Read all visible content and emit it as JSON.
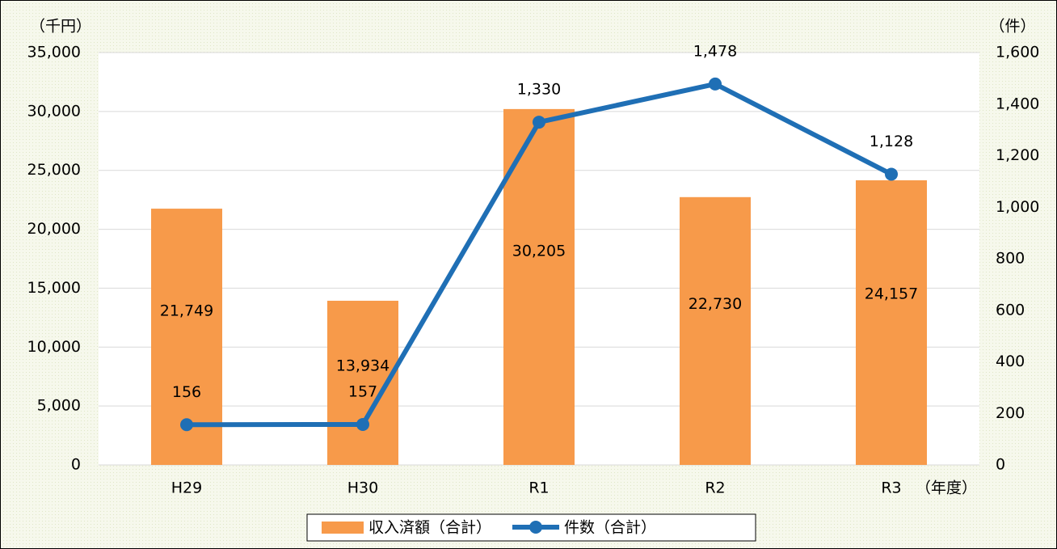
{
  "chart_data": {
    "type": "bar_line",
    "y_unit_label": "（千円）",
    "y2_unit_label": "（件）",
    "x_unit_label": "（年度）",
    "categories": [
      "H29",
      "H30",
      "R1",
      "R2",
      "R3"
    ],
    "series": [
      {
        "name": "収入済額（合計）",
        "type": "bar",
        "color": "#f79a4a",
        "values": [
          21749,
          13934,
          30205,
          22730,
          24157
        ],
        "value_labels": [
          "21,749",
          "13,934",
          "30,205",
          "22,730",
          "24,157"
        ]
      },
      {
        "name": "件数（合計）",
        "type": "line",
        "axis": "y2",
        "color": "#1f6fb5",
        "values": [
          156,
          157,
          1330,
          1478,
          1128
        ],
        "value_labels": [
          "156",
          "157",
          "1,330",
          "1,478",
          "1,128"
        ]
      }
    ],
    "ylim": [
      0,
      35000
    ],
    "yticks": [
      0,
      {
        "value": 5000,
        "label": "5,000"
      },
      {
        "value": 10000,
        "label": "10,000"
      },
      {
        "value": 15000,
        "label": "15,000"
      },
      {
        "value": 20000,
        "label": "20,000"
      },
      {
        "value": 25000,
        "label": "25,000"
      },
      {
        "value": 30000,
        "label": "30,000"
      },
      {
        "value": 35000,
        "label": "35,000"
      }
    ],
    "y2lim": [
      0,
      1600
    ],
    "y2ticks": [
      0,
      200,
      400,
      600,
      800,
      {
        "value": 1000,
        "label": "1,000"
      },
      {
        "value": 1200,
        "label": "1,200"
      },
      {
        "value": 1400,
        "label": "1,400"
      },
      {
        "value": 1600,
        "label": "1,600"
      }
    ],
    "grid": true,
    "legend": "bottom"
  }
}
